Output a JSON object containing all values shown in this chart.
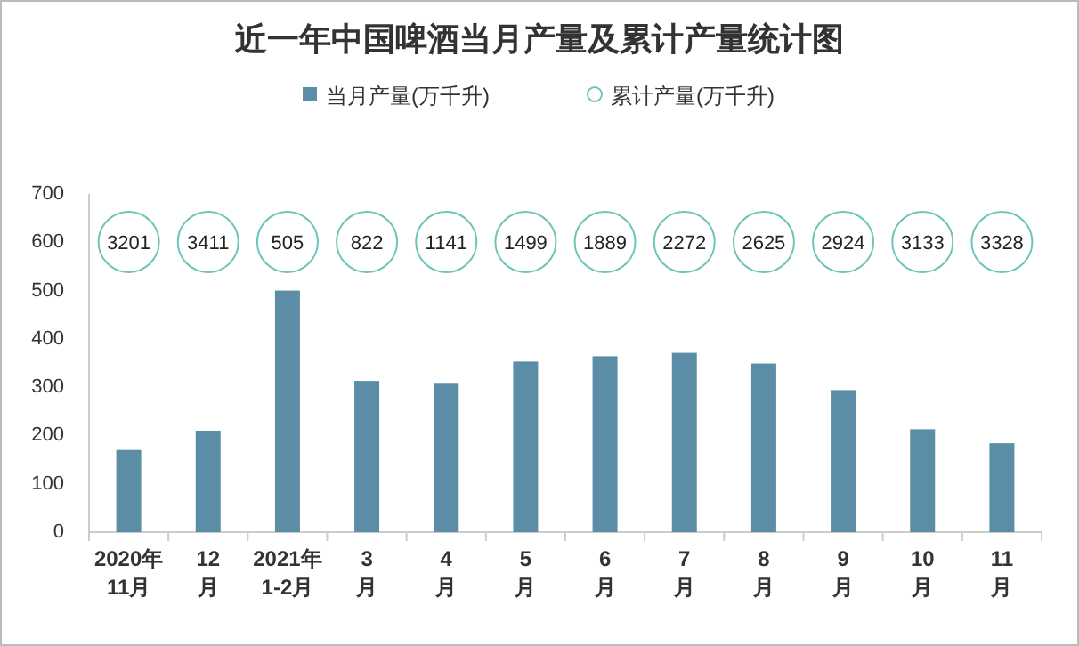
{
  "chart_data": {
    "type": "bar",
    "title": "近一年中国啤酒当月产量及累计产量统计图",
    "categories": [
      "2020年\n11月",
      "12\n月",
      "2021年\n1-2月",
      "3\n月",
      "4\n月",
      "5\n月",
      "6\n月",
      "7\n月",
      "8\n月",
      "9\n月",
      "10\n月",
      "11\n月"
    ],
    "series": [
      {
        "name": "当月产量(万千升)",
        "color": "#5b8ea6",
        "values": [
          170,
          210,
          500,
          313,
          309,
          353,
          364,
          371,
          349,
          294,
          213,
          184
        ]
      },
      {
        "name": "累计产量(万千升)",
        "type": "scatter",
        "marker": "circle",
        "color": "#6cc5b8",
        "values": [
          null,
          null,
          null,
          null,
          null,
          null,
          null,
          null,
          null,
          null,
          null,
          null
        ],
        "value_labels": [
          "3201",
          "3411",
          "505",
          "822",
          "1141",
          "1499",
          "1889",
          "2272",
          "2625",
          "2924",
          "3133",
          "3328"
        ]
      }
    ],
    "ylim": [
      0,
      700
    ],
    "yticks": [
      0,
      100,
      200,
      300,
      400,
      500,
      600,
      700
    ],
    "legend": "top",
    "grid": false
  }
}
